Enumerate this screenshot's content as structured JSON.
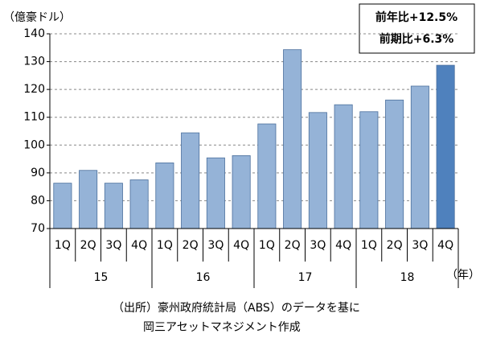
{
  "chart_data": {
    "type": "bar",
    "y_label": "（億豪ドル）",
    "x_label": "（年）",
    "categories": [
      "1Q",
      "2Q",
      "3Q",
      "4Q",
      "1Q",
      "2Q",
      "3Q",
      "4Q",
      "1Q",
      "2Q",
      "3Q",
      "4Q",
      "1Q",
      "2Q",
      "3Q",
      "4Q"
    ],
    "years": [
      "15",
      "16",
      "17",
      "18"
    ],
    "values": [
      86.3,
      90.9,
      86.3,
      87.5,
      93.6,
      104.4,
      95.4,
      96.2,
      107.6,
      134.3,
      111.7,
      114.5,
      112.0,
      116.2,
      121.2,
      128.7
    ],
    "colors": [
      "#95b3d7",
      "#95b3d7",
      "#95b3d7",
      "#95b3d7",
      "#95b3d7",
      "#95b3d7",
      "#95b3d7",
      "#95b3d7",
      "#95b3d7",
      "#95b3d7",
      "#95b3d7",
      "#95b3d7",
      "#95b3d7",
      "#95b3d7",
      "#95b3d7",
      "#4f81bd"
    ],
    "ylim": [
      70,
      140
    ],
    "yticks": [
      70,
      80,
      90,
      100,
      110,
      120,
      130,
      140
    ],
    "grid": true,
    "annotations": [
      "前年比+12.5%",
      "前期比+6.3%"
    ],
    "source": [
      "（出所）豪州政府統計局（ABS）のデータを基に",
      "岡三アセットマネジメント作成"
    ]
  }
}
